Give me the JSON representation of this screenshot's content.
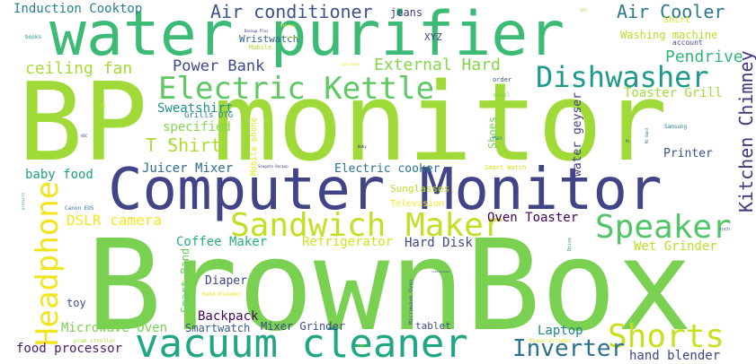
{
  "wordcloud": {
    "words": [
      {
        "text": "BrownBox",
        "color": "#7ad151"
      },
      {
        "text": "BP monitor",
        "color": "#a0da39"
      },
      {
        "text": "Computer Monitor",
        "color": "#414487"
      },
      {
        "text": "water purifier",
        "color": "#3bbb75"
      },
      {
        "text": "vacuum cleaner",
        "color": "#21a685"
      },
      {
        "text": "Sandwich Maker",
        "color": "#c2df23"
      },
      {
        "text": "Electric Kettle",
        "color": "#5ec962"
      },
      {
        "text": "Dishwasher",
        "color": "#1f9a8a"
      },
      {
        "text": "Shorts",
        "color": "#c8e020"
      },
      {
        "text": "Speaker",
        "color": "#52c569"
      },
      {
        "text": "Headphone",
        "color": "#f1e51d"
      },
      {
        "text": "Kitchen Chimney",
        "color": "#46327e"
      },
      {
        "text": "Inverter",
        "color": "#2d708e"
      },
      {
        "text": "Air conditioner",
        "color": "#3b528b"
      },
      {
        "text": "Air Cooler",
        "color": "#2a788e"
      },
      {
        "text": "External Hard",
        "color": "#86d549"
      },
      {
        "text": "ceiling fan",
        "color": "#a5db36"
      },
      {
        "text": "Power Bank",
        "color": "#3e4989"
      },
      {
        "text": "Pendrive",
        "color": "#35b779"
      },
      {
        "text": "T Shirt",
        "color": "#addc30"
      },
      {
        "text": "DSLR camera",
        "color": "#f6e620"
      },
      {
        "text": "Coffee Maker",
        "color": "#29af7f"
      },
      {
        "text": "Refrigerator",
        "color": "#d2e21b"
      },
      {
        "text": "Hard Disk",
        "color": "#3e4a89"
      },
      {
        "text": "Oven Toaster",
        "color": "#440154"
      },
      {
        "text": "Wet Grinder",
        "color": "#bddf26"
      },
      {
        "text": "Laptop",
        "color": "#25848e"
      },
      {
        "text": "Microwave Oven",
        "color": "#7ad151"
      },
      {
        "text": "food processor",
        "color": "#48186a"
      },
      {
        "text": "Backpack",
        "color": "#450559"
      },
      {
        "text": "hand blender",
        "color": "#3f4788"
      },
      {
        "text": "Induction Cooktop",
        "color": "#26818e"
      },
      {
        "text": "jeans",
        "color": "#443983"
      },
      {
        "text": "Washing machine",
        "color": "#bade28"
      },
      {
        "text": "Toaster Grill",
        "color": "#a2da37"
      },
      {
        "text": "Sweatshirt",
        "color": "#21918c"
      },
      {
        "text": "specified",
        "color": "#84d44b"
      },
      {
        "text": "Juicer Mixer",
        "color": "#2f6c8e"
      },
      {
        "text": "baby food",
        "color": "#1fa187"
      },
      {
        "text": "Electric cooker",
        "color": "#2c728e"
      },
      {
        "text": "Printer",
        "color": "#3a538b"
      },
      {
        "text": "water geyser",
        "color": "#433e85"
      },
      {
        "text": "Smart Band",
        "color": "#6ccd5a"
      },
      {
        "text": "Mixer Grinder",
        "color": "#3f4889"
      },
      {
        "text": "Smartwatch",
        "color": "#38598c"
      },
      {
        "text": "Diaper",
        "color": "#404688"
      },
      {
        "text": "tablet",
        "color": "#3e4c8a"
      },
      {
        "text": "toy",
        "color": "#3b518b"
      },
      {
        "text": "Shoes",
        "color": "#75d054"
      },
      {
        "text": "Sunglasses",
        "color": "#bddf26"
      },
      {
        "text": "Television",
        "color": "#fde725"
      },
      {
        "text": "Wristwatch",
        "color": "#31668e"
      },
      {
        "text": "XYZ",
        "color": "#404588"
      },
      {
        "text": "Grills OTG",
        "color": "#287d8e"
      },
      {
        "text": "Mobile phone",
        "color": "#e5e419"
      },
      {
        "text": "Shirt",
        "color": "#e2e418"
      },
      {
        "text": "account",
        "color": "#3d4d8a"
      },
      {
        "text": "Smart Watch",
        "color": "#d8e219"
      },
      {
        "text": "order",
        "color": "#38588c"
      },
      {
        "text": "model",
        "color": "#7fd34e"
      },
      {
        "text": "Samsung",
        "color": "#25858e"
      },
      {
        "text": "Man",
        "color": "#26828e"
      },
      {
        "text": "Mobile",
        "color": "#b5de2b"
      },
      {
        "text": "books",
        "color": "#1f968b"
      },
      {
        "text": "Canon EOS",
        "color": "#2a768e"
      },
      {
        "text": "Hand Blender",
        "color": "#e7e419"
      },
      {
        "text": "Mixer Grinder",
        "color": "#e1e418"
      },
      {
        "text": "Microwave Oven",
        "color": "#3b528b"
      },
      {
        "text": "Drive",
        "color": "#20a486"
      },
      {
        "text": "inch",
        "color": "#31688e"
      },
      {
        "text": "pram stroller",
        "color": "#a8db34"
      },
      {
        "text": "OTG",
        "color": "#addc30"
      },
      {
        "text": "Baby",
        "color": "#482173"
      },
      {
        "text": "Seagate Backup",
        "color": "#424086"
      },
      {
        "text": "ABC",
        "color": "#3e4a89"
      },
      {
        "text": "Mi",
        "color": "#3c4f8a"
      },
      {
        "text": "kitchen",
        "color": "#efe51c"
      },
      {
        "text": "Backup Plus",
        "color": "#472d7b"
      },
      {
        "text": "Hp",
        "color": "#7ad151"
      },
      {
        "text": "purchase",
        "color": "#e5e419"
      },
      {
        "text": "products",
        "color": "#26ad81"
      },
      {
        "text": "Mi Band",
        "color": "#2d708e"
      },
      {
        "text": "refurbished",
        "color": "#3f4889"
      },
      {
        "text": "LED",
        "color": "#d5e21a"
      },
      {
        "text": "Lenovo",
        "color": "#c0df25"
      },
      {
        "text": "UPS",
        "color": "#a5db36"
      }
    ]
  }
}
